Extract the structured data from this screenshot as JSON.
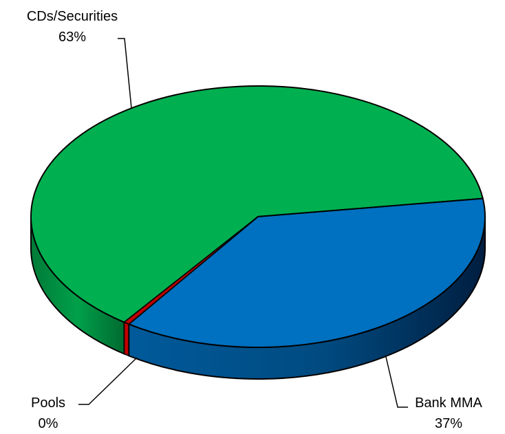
{
  "chart_data": {
    "type": "pie",
    "title": "",
    "three_d": true,
    "legend": "none",
    "slices": [
      {
        "label": "CDs/Securities",
        "value": 63,
        "percent_label": "63%",
        "color": "#00B050"
      },
      {
        "label": "Bank MMA",
        "value": 37,
        "percent_label": "37%",
        "color": "#0070C0"
      },
      {
        "label": "Pools",
        "value": 0.4,
        "percent_label": "0%",
        "color": "#C00000"
      }
    ]
  }
}
